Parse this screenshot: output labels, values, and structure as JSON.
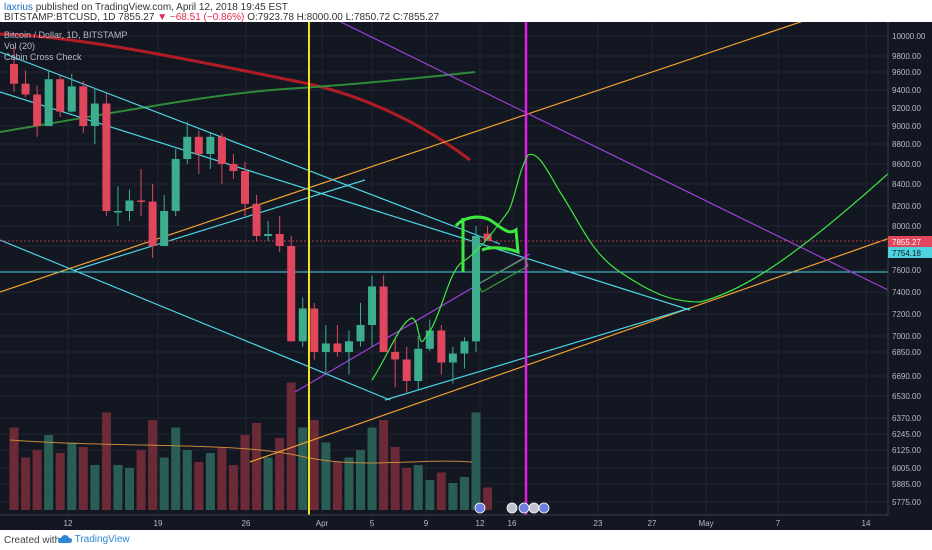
{
  "header": {
    "publisher": "laxrius",
    "published_text": "published on TradingView.com, April 12, 2018 19:45 EST",
    "symbol": "BITSTAMP:BTCUSD, 1D",
    "price": "7855.27",
    "change": "▼ −68.51 (−0.86%)",
    "ohlc": "O:7923.78 H:8000.00 L:7850.72 C:7855.27"
  },
  "legend": {
    "title": "Bitcoin / Dollar, 1D, BITSTAMP",
    "vol": "Vol (20)",
    "indicator": "Cabin Cross Check"
  },
  "footer": {
    "created_with": "Created with",
    "brand": "TradingView"
  },
  "colors": {
    "background": "#131722",
    "up": "#3cae8e",
    "down": "#e0465c",
    "cyan": "#4dd3e0",
    "orange": "#f0a030",
    "purple": "#9b3fd8",
    "yellow": "#f3e21d",
    "magenta": "#e020e0",
    "green_ma": "#2e8b3a",
    "red_ma": "#b01c26",
    "projection": "#3ee83e"
  },
  "chart_data": {
    "type": "candlestick",
    "y_axis": {
      "ticks": [
        10000,
        9800,
        9600,
        9400,
        9200,
        9000,
        8800,
        8600,
        8400,
        8200,
        8000,
        7800,
        7600,
        7400,
        7200,
        7000,
        6850,
        6690,
        6530,
        6370,
        6245,
        6125,
        6005,
        5885,
        5775
      ],
      "last_price_label": "7855.27",
      "secondary_label": "7754.18",
      "range": [
        5700,
        10000
      ]
    },
    "x_axis": {
      "ticks": [
        "12",
        "19",
        "26",
        "Apr",
        "5",
        "9",
        "12",
        "16",
        "23",
        "27",
        "May",
        "7",
        "14"
      ]
    },
    "candles": [
      {
        "o": 9700,
        "h": 9890,
        "l": 9380,
        "c": 9470
      },
      {
        "o": 9470,
        "h": 9620,
        "l": 9320,
        "c": 9350
      },
      {
        "o": 9350,
        "h": 9450,
        "l": 8880,
        "c": 9000
      },
      {
        "o": 9000,
        "h": 9620,
        "l": 9000,
        "c": 9520
      },
      {
        "o": 9520,
        "h": 9560,
        "l": 9100,
        "c": 9160
      },
      {
        "o": 9160,
        "h": 9580,
        "l": 9150,
        "c": 9440
      },
      {
        "o": 9440,
        "h": 9500,
        "l": 8920,
        "c": 9000
      },
      {
        "o": 9000,
        "h": 9420,
        "l": 8800,
        "c": 9250
      },
      {
        "o": 9250,
        "h": 9360,
        "l": 8100,
        "c": 8150
      },
      {
        "o": 8150,
        "h": 8380,
        "l": 8000,
        "c": 8150
      },
      {
        "o": 8150,
        "h": 8350,
        "l": 8050,
        "c": 8250
      },
      {
        "o": 8250,
        "h": 8550,
        "l": 8100,
        "c": 8240
      },
      {
        "o": 8240,
        "h": 8400,
        "l": 7700,
        "c": 7800
      },
      {
        "o": 7800,
        "h": 8300,
        "l": 7800,
        "c": 8150
      },
      {
        "o": 8150,
        "h": 8750,
        "l": 8100,
        "c": 8650
      },
      {
        "o": 8650,
        "h": 9050,
        "l": 8600,
        "c": 8880
      },
      {
        "o": 8880,
        "h": 8950,
        "l": 8500,
        "c": 8700
      },
      {
        "o": 8700,
        "h": 8920,
        "l": 8550,
        "c": 8880
      },
      {
        "o": 8880,
        "h": 8920,
        "l": 8400,
        "c": 8600
      },
      {
        "o": 8600,
        "h": 8700,
        "l": 8450,
        "c": 8530
      },
      {
        "o": 8530,
        "h": 8620,
        "l": 8100,
        "c": 8220
      },
      {
        "o": 8220,
        "h": 8300,
        "l": 7850,
        "c": 7900
      },
      {
        "o": 7900,
        "h": 8050,
        "l": 7850,
        "c": 7920
      },
      {
        "o": 7920,
        "h": 8100,
        "l": 7750,
        "c": 7800
      },
      {
        "o": 7800,
        "h": 7900,
        "l": 6950,
        "c": 6950
      },
      {
        "o": 6950,
        "h": 7350,
        "l": 6900,
        "c": 7250
      },
      {
        "o": 7250,
        "h": 7300,
        "l": 6800,
        "c": 6850
      },
      {
        "o": 6850,
        "h": 7100,
        "l": 6700,
        "c": 6930
      },
      {
        "o": 6930,
        "h": 7100,
        "l": 6820,
        "c": 6850
      },
      {
        "o": 6850,
        "h": 7050,
        "l": 6700,
        "c": 6950
      },
      {
        "o": 6950,
        "h": 7300,
        "l": 6900,
        "c": 7100
      },
      {
        "o": 7100,
        "h": 7550,
        "l": 6900,
        "c": 7450
      },
      {
        "o": 7450,
        "h": 7550,
        "l": 6850,
        "c": 6850
      },
      {
        "o": 6850,
        "h": 6980,
        "l": 6600,
        "c": 6800
      },
      {
        "o": 6800,
        "h": 6900,
        "l": 6560,
        "c": 6650
      },
      {
        "o": 6650,
        "h": 7000,
        "l": 6580,
        "c": 6880
      },
      {
        "o": 6880,
        "h": 7150,
        "l": 6860,
        "c": 7050
      },
      {
        "o": 7050,
        "h": 7100,
        "l": 6700,
        "c": 6780
      },
      {
        "o": 6780,
        "h": 6900,
        "l": 6630,
        "c": 6840
      },
      {
        "o": 6840,
        "h": 6990,
        "l": 6740,
        "c": 6950
      },
      {
        "o": 6950,
        "h": 8000,
        "l": 6850,
        "c": 7900
      },
      {
        "o": 7923.78,
        "h": 8000,
        "l": 7850.72,
        "c": 7855.27
      }
    ],
    "volume_levels": [
      0.55,
      0.35,
      0.4,
      0.5,
      0.38,
      0.45,
      0.42,
      0.3,
      0.65,
      0.3,
      0.28,
      0.4,
      0.6,
      0.35,
      0.55,
      0.4,
      0.32,
      0.38,
      0.42,
      0.3,
      0.5,
      0.58,
      0.35,
      0.48,
      0.85,
      0.55,
      0.6,
      0.45,
      0.32,
      0.35,
      0.4,
      0.55,
      0.6,
      0.42,
      0.28,
      0.3,
      0.2,
      0.25,
      0.18,
      0.22,
      0.65,
      0.15
    ]
  }
}
